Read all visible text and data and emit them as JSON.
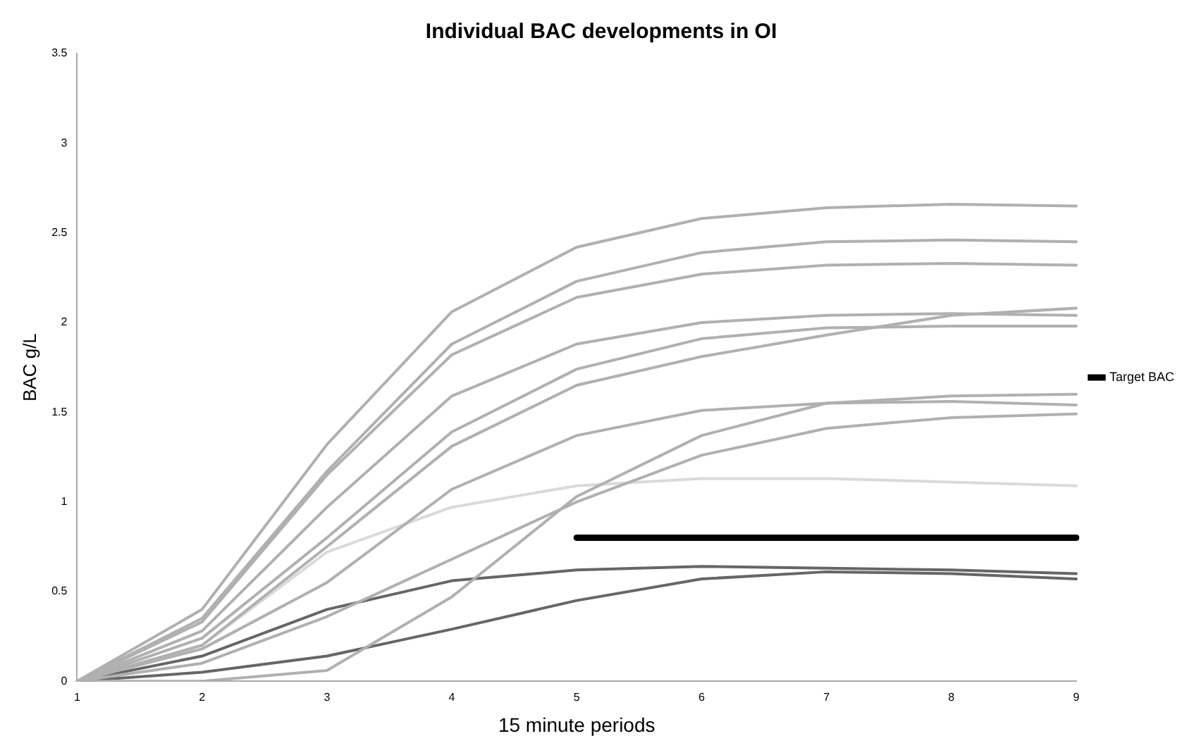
{
  "chart_data": {
    "type": "line",
    "title": "Individual BAC developments in OI",
    "xlabel": "15 minute periods",
    "ylabel": "BAC g/L",
    "categories": [
      "1",
      "2",
      "3",
      "4",
      "5",
      "6",
      "7",
      "8",
      "9"
    ],
    "ylim": [
      0,
      3.5
    ],
    "yticks": [
      0,
      0.5,
      1,
      1.5,
      2,
      2.5,
      3,
      3.5
    ],
    "grid": false,
    "legend": "right",
    "marker": "none",
    "line_style": "solid",
    "series": [
      {
        "color": "#b0b0b0",
        "values": [
          0,
          0.4,
          1.32,
          2.06,
          2.42,
          2.58,
          2.64,
          2.66,
          2.65
        ]
      },
      {
        "color": "#b0b0b0",
        "values": [
          0,
          0.35,
          1.17,
          1.88,
          2.23,
          2.39,
          2.45,
          2.46,
          2.45
        ]
      },
      {
        "color": "#b0b0b0",
        "values": [
          0,
          0.33,
          1.15,
          1.82,
          2.14,
          2.27,
          2.32,
          2.33,
          2.32
        ]
      },
      {
        "color": "#b0b0b0",
        "values": [
          0,
          0.28,
          0.97,
          1.59,
          1.88,
          2.0,
          2.04,
          2.05,
          2.04
        ]
      },
      {
        "color": "#b0b0b0",
        "values": [
          0,
          0.24,
          0.8,
          1.39,
          1.74,
          1.91,
          1.97,
          1.98,
          1.98
        ]
      },
      {
        "color": "#b0b0b0",
        "values": [
          0,
          0.2,
          0.75,
          1.31,
          1.65,
          1.81,
          1.93,
          2.04,
          2.08
        ]
      },
      {
        "color": "#b0b0b0",
        "values": [
          0,
          0.18,
          0.55,
          1.07,
          1.37,
          1.51,
          1.55,
          1.56,
          1.54
        ]
      },
      {
        "color": "#b0b0b0",
        "values": [
          0,
          0,
          0.06,
          0.47,
          1.03,
          1.37,
          1.55,
          1.59,
          1.6
        ]
      },
      {
        "color": "#b0b0b0",
        "values": [
          0,
          0.1,
          0.36,
          0.68,
          1.0,
          1.26,
          1.41,
          1.47,
          1.49
        ]
      },
      {
        "color": "#dadada",
        "values": [
          0,
          0.2,
          0.72,
          0.97,
          1.09,
          1.13,
          1.13,
          1.11,
          1.09
        ]
      },
      {
        "color": "#666666",
        "values": [
          0,
          0.14,
          0.4,
          0.56,
          0.62,
          0.64,
          0.63,
          0.62,
          0.6
        ]
      },
      {
        "color": "#666666",
        "values": [
          0,
          0.05,
          0.14,
          0.29,
          0.45,
          0.57,
          0.61,
          0.6,
          0.57
        ]
      },
      {
        "name": "Target BAC",
        "color": "#000000",
        "values": [
          null,
          null,
          null,
          null,
          0.8,
          0.8,
          0.8,
          0.8,
          0.8
        ]
      }
    ]
  }
}
